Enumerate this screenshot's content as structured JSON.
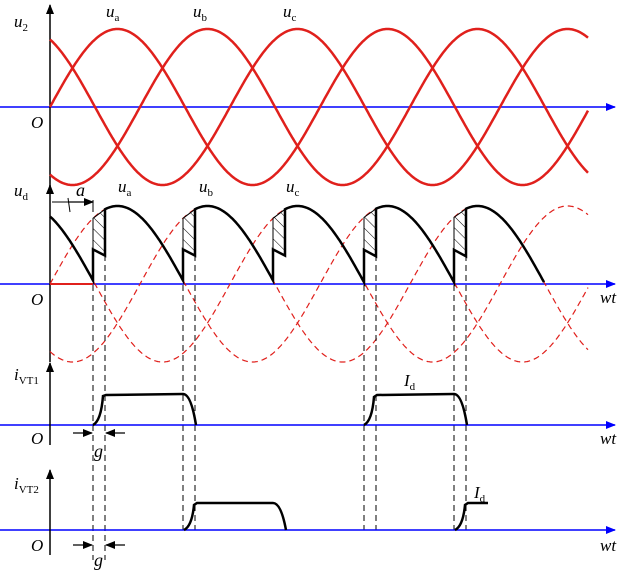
{
  "panel1": {
    "y_label": "u",
    "y_label_sub": "2",
    "origin": "O",
    "phases": [
      {
        "name": "u",
        "sub": "a"
      },
      {
        "name": "u",
        "sub": "b"
      },
      {
        "name": "u",
        "sub": "c"
      }
    ]
  },
  "panel2": {
    "y_label": "u",
    "y_label_sub": "d",
    "origin": "O",
    "x_label": "wt",
    "angle_label": "a",
    "phases": [
      {
        "name": "u",
        "sub": "a"
      },
      {
        "name": "u",
        "sub": "b"
      },
      {
        "name": "u",
        "sub": "c"
      }
    ]
  },
  "panel3": {
    "y_label": "i",
    "y_label_sub": "VT1",
    "origin": "O",
    "x_label": "wt",
    "current_label": "I",
    "current_sub": "d",
    "overlap_label": "g"
  },
  "panel4": {
    "y_label": "i",
    "y_label_sub": "VT2",
    "origin": "O",
    "x_label": "wt",
    "current_label": "I",
    "current_sub": "d",
    "overlap_label": "g"
  },
  "colors": {
    "axis": "#0000ff",
    "phase": "#e0201c",
    "output": "#000000"
  }
}
